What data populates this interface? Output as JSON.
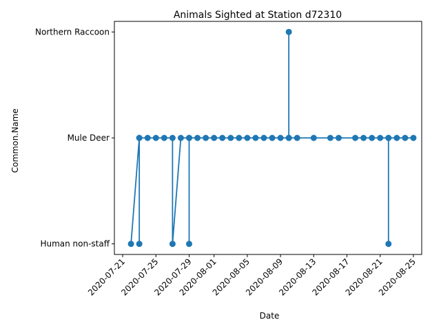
{
  "chart_data": {
    "type": "line",
    "title": "Animals Sighted at Station d72310",
    "xlabel": "Date",
    "ylabel": "Common.Name",
    "categories": [
      "Human non-staff",
      "Mule Deer",
      "Northern Raccoon"
    ],
    "x_ticks": [
      "2020-07-21",
      "2020-07-25",
      "2020-07-29",
      "2020-08-01",
      "2020-08-05",
      "2020-08-09",
      "2020-08-13",
      "2020-08-17",
      "2020-08-21",
      "2020-08-25"
    ],
    "xlim": [
      "2020-07-20",
      "2020-08-26"
    ],
    "grid": false,
    "marker": "circle",
    "color": "#1f77b4",
    "series": [
      {
        "points": [
          [
            "2020-07-22",
            "Human non-staff"
          ],
          [
            "2020-07-23",
            "Mule Deer"
          ],
          [
            "2020-07-23",
            "Human non-staff"
          ],
          [
            "2020-07-23",
            "Mule Deer"
          ],
          [
            "2020-07-24",
            "Mule Deer"
          ],
          [
            "2020-07-25",
            "Mule Deer"
          ],
          [
            "2020-07-26",
            "Mule Deer"
          ],
          [
            "2020-07-27",
            "Mule Deer"
          ],
          [
            "2020-07-27",
            "Human non-staff"
          ],
          [
            "2020-07-28",
            "Mule Deer"
          ],
          [
            "2020-07-29",
            "Mule Deer"
          ],
          [
            "2020-07-29",
            "Human non-staff"
          ],
          [
            "2020-07-29",
            "Mule Deer"
          ],
          [
            "2020-07-30",
            "Mule Deer"
          ],
          [
            "2020-07-31",
            "Mule Deer"
          ],
          [
            "2020-08-01",
            "Mule Deer"
          ],
          [
            "2020-08-02",
            "Mule Deer"
          ],
          [
            "2020-08-03",
            "Mule Deer"
          ],
          [
            "2020-08-04",
            "Mule Deer"
          ],
          [
            "2020-08-05",
            "Mule Deer"
          ],
          [
            "2020-08-06",
            "Mule Deer"
          ],
          [
            "2020-08-07",
            "Mule Deer"
          ],
          [
            "2020-08-08",
            "Mule Deer"
          ],
          [
            "2020-08-09",
            "Mule Deer"
          ],
          [
            "2020-08-10",
            "Mule Deer"
          ],
          [
            "2020-08-10",
            "Northern Raccoon"
          ],
          [
            "2020-08-10",
            "Mule Deer"
          ],
          [
            "2020-08-11",
            "Mule Deer"
          ],
          [
            "2020-08-13",
            "Mule Deer"
          ],
          [
            "2020-08-15",
            "Mule Deer"
          ],
          [
            "2020-08-16",
            "Mule Deer"
          ],
          [
            "2020-08-18",
            "Mule Deer"
          ],
          [
            "2020-08-19",
            "Mule Deer"
          ],
          [
            "2020-08-20",
            "Mule Deer"
          ],
          [
            "2020-08-21",
            "Mule Deer"
          ],
          [
            "2020-08-22",
            "Mule Deer"
          ],
          [
            "2020-08-22",
            "Human non-staff"
          ],
          [
            "2020-08-22",
            "Mule Deer"
          ],
          [
            "2020-08-23",
            "Mule Deer"
          ],
          [
            "2020-08-24",
            "Mule Deer"
          ],
          [
            "2020-08-25",
            "Mule Deer"
          ]
        ]
      }
    ]
  }
}
